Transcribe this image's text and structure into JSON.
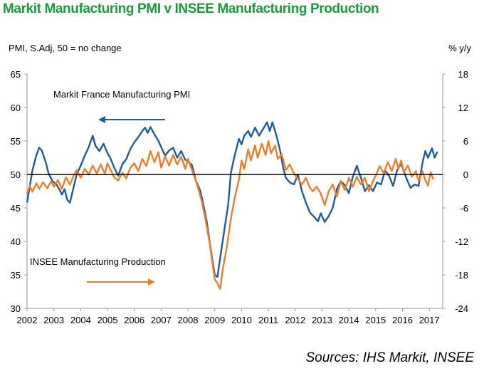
{
  "title": "Markit Manufacturing PMI v INSEE Manufacturing Production",
  "source": "Sources: IHS Markit, INSEE",
  "colors": {
    "title": "#1a9a3a",
    "pmi": "#1f5c99",
    "production": "#f07c28",
    "axis": "#999999",
    "baseline": "#000000"
  },
  "chart_data": {
    "type": "line",
    "title": "Markit Manufacturing PMI v INSEE Manufacturing Production",
    "left_axis": {
      "label": "PMI, S.Adj, 50 = no change",
      "range": [
        30,
        65
      ],
      "ticks": [
        30,
        35,
        40,
        45,
        50,
        55,
        60,
        65
      ]
    },
    "right_axis": {
      "label": "% y/y",
      "range": [
        -24,
        18
      ],
      "ticks": [
        -24,
        -18,
        -12,
        -6,
        0,
        6,
        12,
        18
      ]
    },
    "x_axis": {
      "range": [
        2002,
        2017.5
      ],
      "tick_labels": [
        "2002",
        "2003",
        "2004",
        "2005",
        "2006",
        "2007",
        "2008",
        "2009",
        "2010",
        "2011",
        "2012",
        "2013",
        "2014",
        "2015",
        "2016",
        "2017"
      ]
    },
    "baseline": {
      "axis": "left",
      "value": 50
    },
    "legend": "inline-labels",
    "series": [
      {
        "name": "Markit France Manufacturing PMI",
        "axis": "left",
        "arrow": "left",
        "points": [
          [
            2002.0,
            45.8
          ],
          [
            2002.1,
            48.2
          ],
          [
            2002.2,
            50.6
          ],
          [
            2002.35,
            52.9
          ],
          [
            2002.45,
            54.0
          ],
          [
            2002.55,
            53.6
          ],
          [
            2002.7,
            51.8
          ],
          [
            2002.8,
            50.2
          ],
          [
            2002.95,
            49.0
          ],
          [
            2003.1,
            48.5
          ],
          [
            2003.2,
            47.8
          ],
          [
            2003.3,
            47.0
          ],
          [
            2003.4,
            47.8
          ],
          [
            2003.5,
            46.2
          ],
          [
            2003.6,
            45.8
          ],
          [
            2003.7,
            47.5
          ],
          [
            2003.85,
            50.0
          ],
          [
            2004.0,
            51.3
          ],
          [
            2004.15,
            52.8
          ],
          [
            2004.3,
            54.1
          ],
          [
            2004.45,
            55.8
          ],
          [
            2004.55,
            54.3
          ],
          [
            2004.7,
            53.5
          ],
          [
            2004.85,
            54.6
          ],
          [
            2005.0,
            53.2
          ],
          [
            2005.1,
            52.5
          ],
          [
            2005.25,
            51.0
          ],
          [
            2005.4,
            49.8
          ],
          [
            2005.55,
            51.5
          ],
          [
            2005.7,
            52.3
          ],
          [
            2005.85,
            53.8
          ],
          [
            2006.0,
            54.8
          ],
          [
            2006.15,
            55.6
          ],
          [
            2006.3,
            56.5
          ],
          [
            2006.4,
            57.0
          ],
          [
            2006.5,
            56.2
          ],
          [
            2006.6,
            57.1
          ],
          [
            2006.75,
            56.0
          ],
          [
            2006.9,
            55.0
          ],
          [
            2007.0,
            54.1
          ],
          [
            2007.15,
            52.8
          ],
          [
            2007.3,
            53.6
          ],
          [
            2007.45,
            54.0
          ],
          [
            2007.6,
            52.5
          ],
          [
            2007.75,
            53.5
          ],
          [
            2007.9,
            52.2
          ],
          [
            2008.0,
            52.0
          ],
          [
            2008.15,
            51.4
          ],
          [
            2008.3,
            49.0
          ],
          [
            2008.45,
            47.7
          ],
          [
            2008.55,
            46.0
          ],
          [
            2008.7,
            43.0
          ],
          [
            2008.8,
            40.2
          ],
          [
            2008.9,
            37.5
          ],
          [
            2009.0,
            35.0
          ],
          [
            2009.1,
            34.7
          ],
          [
            2009.2,
            37.5
          ],
          [
            2009.35,
            41.5
          ],
          [
            2009.5,
            45.5
          ],
          [
            2009.6,
            50.2
          ],
          [
            2009.75,
            53.0
          ],
          [
            2009.9,
            55.3
          ],
          [
            2010.0,
            54.5
          ],
          [
            2010.1,
            55.8
          ],
          [
            2010.25,
            56.5
          ],
          [
            2010.35,
            55.6
          ],
          [
            2010.5,
            57.0
          ],
          [
            2010.65,
            55.8
          ],
          [
            2010.8,
            56.8
          ],
          [
            2010.95,
            57.8
          ],
          [
            2011.05,
            56.5
          ],
          [
            2011.15,
            57.8
          ],
          [
            2011.25,
            56.5
          ],
          [
            2011.35,
            55.0
          ],
          [
            2011.45,
            53.3
          ],
          [
            2011.55,
            51.0
          ],
          [
            2011.65,
            49.5
          ],
          [
            2011.8,
            48.8
          ],
          [
            2011.95,
            48.5
          ],
          [
            2012.1,
            50.0
          ],
          [
            2012.25,
            47.5
          ],
          [
            2012.4,
            45.8
          ],
          [
            2012.55,
            44.3
          ],
          [
            2012.7,
            43.7
          ],
          [
            2012.85,
            43.0
          ],
          [
            2012.95,
            44.2
          ],
          [
            2013.1,
            42.9
          ],
          [
            2013.25,
            43.8
          ],
          [
            2013.4,
            45.0
          ],
          [
            2013.55,
            47.8
          ],
          [
            2013.7,
            49.0
          ],
          [
            2013.85,
            48.4
          ],
          [
            2014.0,
            47.2
          ],
          [
            2014.15,
            49.7
          ],
          [
            2014.3,
            51.3
          ],
          [
            2014.45,
            49.5
          ],
          [
            2014.6,
            47.5
          ],
          [
            2014.75,
            48.4
          ],
          [
            2014.9,
            47.5
          ],
          [
            2015.05,
            48.8
          ],
          [
            2015.2,
            48.5
          ],
          [
            2015.35,
            50.6
          ],
          [
            2015.5,
            49.8
          ],
          [
            2015.65,
            48.3
          ],
          [
            2015.8,
            50.6
          ],
          [
            2015.95,
            51.6
          ],
          [
            2016.05,
            50.5
          ],
          [
            2016.15,
            49.4
          ],
          [
            2016.3,
            48.0
          ],
          [
            2016.45,
            48.5
          ],
          [
            2016.6,
            48.3
          ],
          [
            2016.75,
            51.8
          ],
          [
            2016.85,
            53.5
          ],
          [
            2016.95,
            52.5
          ],
          [
            2017.1,
            53.9
          ],
          [
            2017.2,
            52.5
          ],
          [
            2017.3,
            53.4
          ]
        ]
      },
      {
        "name": "INSEE Manufacturing Production",
        "axis": "right",
        "arrow": "right",
        "points": [
          [
            2002.0,
            -3.5
          ],
          [
            2002.1,
            -2.0
          ],
          [
            2002.2,
            -3.1
          ],
          [
            2002.35,
            -1.6
          ],
          [
            2002.45,
            -2.6
          ],
          [
            2002.6,
            -1.4
          ],
          [
            2002.75,
            -2.5
          ],
          [
            2002.9,
            -1.2
          ],
          [
            2003.0,
            -2.2
          ],
          [
            2003.15,
            -1.0
          ],
          [
            2003.3,
            -2.6
          ],
          [
            2003.45,
            -0.5
          ],
          [
            2003.6,
            -1.8
          ],
          [
            2003.75,
            -0.1
          ],
          [
            2003.85,
            0.8
          ],
          [
            2004.0,
            -0.6
          ],
          [
            2004.15,
            1.0
          ],
          [
            2004.3,
            0.0
          ],
          [
            2004.45,
            1.6
          ],
          [
            2004.6,
            0.2
          ],
          [
            2004.75,
            1.8
          ],
          [
            2004.9,
            0.1
          ],
          [
            2005.0,
            2.0
          ],
          [
            2005.1,
            1.0
          ],
          [
            2005.25,
            -0.5
          ],
          [
            2005.4,
            -1.1
          ],
          [
            2005.55,
            0.3
          ],
          [
            2005.7,
            -0.7
          ],
          [
            2005.85,
            1.2
          ],
          [
            2006.0,
            2.0
          ],
          [
            2006.15,
            0.6
          ],
          [
            2006.3,
            2.8
          ],
          [
            2006.45,
            1.5
          ],
          [
            2006.6,
            4.2
          ],
          [
            2006.75,
            2.2
          ],
          [
            2006.9,
            4.0
          ],
          [
            2007.0,
            1.2
          ],
          [
            2007.15,
            3.2
          ],
          [
            2007.3,
            1.6
          ],
          [
            2007.45,
            3.5
          ],
          [
            2007.6,
            1.8
          ],
          [
            2007.75,
            3.2
          ],
          [
            2007.9,
            1.0
          ],
          [
            2008.0,
            2.8
          ],
          [
            2008.15,
            0.8
          ],
          [
            2008.25,
            -0.5
          ],
          [
            2008.35,
            -2.0
          ],
          [
            2008.5,
            -4.5
          ],
          [
            2008.65,
            -8.0
          ],
          [
            2008.8,
            -12.0
          ],
          [
            2008.9,
            -15.5
          ],
          [
            2009.0,
            -18.8
          ],
          [
            2009.1,
            -19.5
          ],
          [
            2009.2,
            -20.5
          ],
          [
            2009.3,
            -17.0
          ],
          [
            2009.45,
            -13.0
          ],
          [
            2009.6,
            -8.0
          ],
          [
            2009.75,
            -4.0
          ],
          [
            2009.9,
            -1.0
          ],
          [
            2010.0,
            2.5
          ],
          [
            2010.1,
            1.0
          ],
          [
            2010.25,
            4.5
          ],
          [
            2010.35,
            2.5
          ],
          [
            2010.5,
            5.2
          ],
          [
            2010.6,
            3.0
          ],
          [
            2010.75,
            5.5
          ],
          [
            2010.9,
            3.5
          ],
          [
            2011.0,
            6.0
          ],
          [
            2011.1,
            3.8
          ],
          [
            2011.25,
            5.2
          ],
          [
            2011.35,
            2.8
          ],
          [
            2011.5,
            3.6
          ],
          [
            2011.65,
            0.8
          ],
          [
            2011.8,
            1.8
          ],
          [
            2011.95,
            0.2
          ],
          [
            2012.1,
            -0.8
          ],
          [
            2012.25,
            -1.8
          ],
          [
            2012.4,
            -0.6
          ],
          [
            2012.55,
            -2.4
          ],
          [
            2012.65,
            -3.0
          ],
          [
            2012.8,
            -2.2
          ],
          [
            2012.95,
            -3.4
          ],
          [
            2013.1,
            -5.5
          ],
          [
            2013.25,
            -3.0
          ],
          [
            2013.4,
            -1.8
          ],
          [
            2013.55,
            -4.0
          ],
          [
            2013.7,
            -1.2
          ],
          [
            2013.85,
            -2.8
          ],
          [
            2014.0,
            -0.6
          ],
          [
            2014.15,
            -2.2
          ],
          [
            2014.3,
            -0.4
          ],
          [
            2014.45,
            -1.8
          ],
          [
            2014.6,
            -0.6
          ],
          [
            2014.75,
            -3.0
          ],
          [
            2014.9,
            -1.2
          ],
          [
            2015.0,
            -0.2
          ],
          [
            2015.15,
            1.5
          ],
          [
            2015.3,
            0.2
          ],
          [
            2015.45,
            2.2
          ],
          [
            2015.6,
            0.6
          ],
          [
            2015.75,
            2.8
          ],
          [
            2015.85,
            1.0
          ],
          [
            2015.95,
            2.5
          ],
          [
            2016.05,
            0.4
          ],
          [
            2016.2,
            1.6
          ],
          [
            2016.35,
            -0.4
          ],
          [
            2016.5,
            0.6
          ],
          [
            2016.6,
            -1.2
          ],
          [
            2016.75,
            0.6
          ],
          [
            2016.85,
            -1.0
          ],
          [
            2016.95,
            -2.0
          ],
          [
            2017.05,
            0.4
          ],
          [
            2017.15,
            -0.9
          ]
        ]
      }
    ]
  }
}
